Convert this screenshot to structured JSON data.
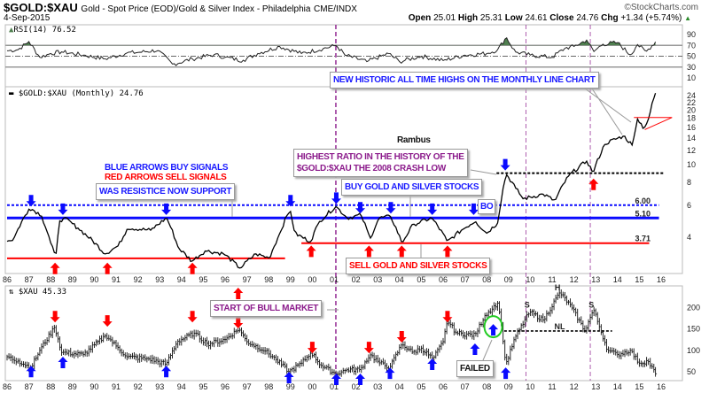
{
  "header": {
    "symbol": "$GOLD:$XAU",
    "description": "Gold - Spot Price (EOD)/Gold & Silver Index - Philadelphia",
    "exchange": "CME/INDX",
    "date": "4-Sep-2015",
    "brand": "©StockCharts.com",
    "open_label": "Open",
    "open": "25.01",
    "high_label": "High",
    "high": "25.31",
    "low_label": "Low",
    "low": "24.61",
    "close_label": "Close",
    "close": "24.76",
    "chg_label": "Chg",
    "chg": "+1.34 (+5.74%)",
    "chg_icon": "up-triangle-icon"
  },
  "colors": {
    "buy": "#0a0aff",
    "sell": "#ff0000",
    "purple": "#8b1a8b",
    "rsi_fill": "#4f7f4f",
    "green_circle": "#22cc22"
  },
  "chart_data": [
    {
      "type": "line",
      "title": "RSI(14) 76.52",
      "ylim": [
        0,
        100
      ],
      "yticks": [
        "90",
        "70",
        "50",
        "30",
        "10"
      ],
      "levels": [
        70,
        50,
        30
      ],
      "series": [
        {
          "name": "RSI(14)",
          "points": [
            [
              1986.0,
              60
            ],
            [
              1986.5,
              62
            ],
            [
              1987.0,
              77
            ],
            [
              1987.5,
              48
            ],
            [
              1988.0,
              55
            ],
            [
              1988.5,
              58
            ],
            [
              1989.5,
              52
            ],
            [
              1990.5,
              45
            ],
            [
              1991.5,
              56
            ],
            [
              1992.0,
              57
            ],
            [
              1992.9,
              61
            ],
            [
              1993.6,
              35
            ],
            [
              1994.5,
              45
            ],
            [
              1995.5,
              53
            ],
            [
              1996.0,
              48
            ],
            [
              1996.8,
              42
            ],
            [
              1997.5,
              55
            ],
            [
              1998.5,
              68
            ],
            [
              1999.5,
              55
            ],
            [
              2000.5,
              64
            ],
            [
              2001.1,
              70
            ],
            [
              2001.5,
              52
            ],
            [
              2002.5,
              40
            ],
            [
              2003.5,
              55
            ],
            [
              2004.0,
              40
            ],
            [
              2005.0,
              50
            ],
            [
              2006.0,
              42
            ],
            [
              2007.0,
              52
            ],
            [
              2008.0,
              55
            ],
            [
              2008.5,
              62
            ],
            [
              2008.9,
              85
            ],
            [
              2009.3,
              58
            ],
            [
              2010.0,
              52
            ],
            [
              2011.0,
              48
            ],
            [
              2011.6,
              65
            ],
            [
              2012.0,
              68
            ],
            [
              2012.6,
              80
            ],
            [
              2012.9,
              58
            ],
            [
              2013.3,
              72
            ],
            [
              2014.0,
              75
            ],
            [
              2014.6,
              52
            ],
            [
              2014.9,
              72
            ],
            [
              2015.3,
              58
            ],
            [
              2015.74,
              76.52
            ]
          ]
        }
      ]
    },
    {
      "type": "line",
      "title": "$GOLD:$XAU (Monthly) 24.76",
      "scale": "log",
      "ylim": [
        2.4,
        26
      ],
      "yticks": [
        "24",
        "22",
        "20",
        "18",
        "16",
        "14",
        "12",
        "10",
        "8",
        "6",
        "4"
      ],
      "xticks": [
        "86",
        "87",
        "88",
        "89",
        "90",
        "91",
        "92",
        "93",
        "94",
        "95",
        "96",
        "97",
        "98",
        "99",
        "00",
        "01",
        "02",
        "03",
        "04",
        "05",
        "06",
        "07",
        "08",
        "09",
        "10",
        "11",
        "12",
        "13",
        "14",
        "15",
        "16"
      ],
      "xlim": [
        1986,
        2016
      ],
      "series": [
        {
          "name": "$GOLD:$XAU",
          "points": [
            [
              1986.0,
              3.8
            ],
            [
              1986.3,
              3.91
            ],
            [
              1987.04,
              5.8
            ],
            [
              1987.56,
              5.3
            ],
            [
              1987.98,
              3.78
            ],
            [
              1988.23,
              3.05
            ],
            [
              1988.4,
              4.9
            ],
            [
              1988.61,
              5.1
            ],
            [
              1989.24,
              4.5
            ],
            [
              1990.5,
              3.24
            ],
            [
              1991.12,
              3.6
            ],
            [
              1991.54,
              4.5
            ],
            [
              1992.59,
              4.37
            ],
            [
              1993.32,
              5.1
            ],
            [
              1993.85,
              3.5
            ],
            [
              1994.48,
              2.95
            ],
            [
              1995.1,
              3.37
            ],
            [
              1995.95,
              3.24
            ],
            [
              1996.68,
              2.7
            ],
            [
              1997.41,
              3.24
            ],
            [
              1998.03,
              3.07
            ],
            [
              1998.46,
              4.06
            ],
            [
              1998.98,
              5.68
            ],
            [
              1999.19,
              4.2
            ],
            [
              1999.92,
              3.78
            ],
            [
              2000.34,
              4.9
            ],
            [
              2001.08,
              5.9
            ],
            [
              2001.6,
              5.1
            ],
            [
              2002.23,
              5.3
            ],
            [
              2002.65,
              3.91
            ],
            [
              2003.06,
              5.1
            ],
            [
              2003.59,
              5.2
            ],
            [
              2004.11,
              3.71
            ],
            [
              2004.64,
              4.7
            ],
            [
              2005.48,
              5.1
            ],
            [
              2006.2,
              3.78
            ],
            [
              2006.84,
              4.37
            ],
            [
              2007.47,
              4.9
            ],
            [
              2007.99,
              4.2
            ],
            [
              2008.51,
              4.8
            ],
            [
              2008.89,
              8.9
            ],
            [
              2009.35,
              7.37
            ],
            [
              2009.67,
              6.5
            ],
            [
              2010.6,
              6.9
            ],
            [
              2011.13,
              6.32
            ],
            [
              2011.76,
              8.7
            ],
            [
              2012.6,
              10.5
            ],
            [
              2012.87,
              9.0
            ],
            [
              2013.44,
              13.1
            ],
            [
              2014.28,
              14.4
            ],
            [
              2014.7,
              12.7
            ],
            [
              2014.9,
              18.0
            ],
            [
              2015.22,
              15.8
            ],
            [
              2015.43,
              18.0
            ],
            [
              2015.74,
              24.76
            ]
          ]
        }
      ],
      "levels": [
        {
          "name": "resistance-now-support",
          "value": 6.0,
          "label": "6.00",
          "style": "dotted",
          "color": "#0a0aff",
          "from": 1986,
          "to": 2015.9
        },
        {
          "name": "support",
          "value": 5.1,
          "label": "5.10",
          "style": "solid",
          "color": "#0a0aff",
          "from": 1986,
          "to": 2015.9
        },
        {
          "name": "sell-line-2",
          "value": 3.71,
          "label": "3.71",
          "style": "solid",
          "color": "#ff0000",
          "from": 1999.5,
          "to": 2015.45
        },
        {
          "name": "sell-line-1",
          "value": 3.06,
          "label": "",
          "style": "solid",
          "color": "#ff0000",
          "from": 1986,
          "to": 1998.75
        },
        {
          "name": "crash-high",
          "value": 9.0,
          "label": "",
          "style": "dashed",
          "color": "#000000",
          "from": 2008.45,
          "to": 2016.15
        }
      ],
      "buy_arrows": [
        [
          1987.1,
          5.9
        ],
        [
          1988.56,
          5.3
        ],
        [
          1993.3,
          5.3
        ],
        [
          1999.0,
          5.9
        ],
        [
          2001.1,
          6.1
        ],
        [
          2002.2,
          5.4
        ],
        [
          2003.6,
          5.4
        ],
        [
          2005.5,
          5.3
        ],
        [
          2007.4,
          5.3
        ],
        [
          2008.85,
          9.3
        ]
      ],
      "sell_arrows": [
        [
          1988.2,
          2.9
        ],
        [
          1990.6,
          2.9
        ],
        [
          1994.5,
          2.9
        ],
        [
          1999.95,
          3.6
        ],
        [
          2002.6,
          3.6
        ],
        [
          2004.1,
          3.6
        ],
        [
          2006.2,
          3.6
        ],
        [
          2012.9,
          8.4
        ]
      ],
      "annotations": {
        "all_time_highs": "NEW HISTORIC ALL TIME HIGHS ON THE MONTHLY LINE CHART",
        "author": "Rambus",
        "legend_buy": "BLUE ARROWS BUY SIGNALS",
        "legend_sell": "RED ARROWS SELL SIGNALS",
        "resistance": "WAS RESISTICE NOW SUPPORT",
        "highest_ratio_1": "HIGHEST RATIO IN THE HISTORY OF THE",
        "highest_ratio_2": "$GOLD:$XAU THE 2008 CRASH LOW",
        "buy_stocks": "BUY GOLD AND SILVER STOCKS",
        "breakout": "BO",
        "sell_stocks": "SELL GOLD AND SILVER STOCKS"
      }
    },
    {
      "type": "bar",
      "title": "$XAU 45.33",
      "ylim": [
        35,
        245
      ],
      "yticks": [
        "200",
        "150",
        "100",
        "50"
      ],
      "series": [
        {
          "name": "$XAU",
          "points": [
            [
              1986.0,
              85
            ],
            [
              1986.5,
              75
            ],
            [
              1987.1,
              60
            ],
            [
              1987.5,
              100
            ],
            [
              1988.19,
              155
            ],
            [
              1988.5,
              95
            ],
            [
              1989.5,
              90
            ],
            [
              1990.54,
              135
            ],
            [
              1991.0,
              110
            ],
            [
              1991.5,
              85
            ],
            [
              1992.5,
              80
            ],
            [
              1993.3,
              68
            ],
            [
              1993.8,
              120
            ],
            [
              1994.58,
              140
            ],
            [
              1995.2,
              115
            ],
            [
              1996.0,
              125
            ],
            [
              1996.63,
              150
            ],
            [
              1997.0,
              120
            ],
            [
              1997.8,
              100
            ],
            [
              1998.3,
              80
            ],
            [
              1998.93,
              50
            ],
            [
              1999.5,
              70
            ],
            [
              1999.95,
              95
            ],
            [
              2000.4,
              65
            ],
            [
              2001.08,
              45
            ],
            [
              2001.6,
              55
            ],
            [
              2002.2,
              55
            ],
            [
              2002.65,
              90
            ],
            [
              2003.1,
              70
            ],
            [
              2003.56,
              60
            ],
            [
              2004.11,
              115
            ],
            [
              2004.6,
              95
            ],
            [
              2005.0,
              105
            ],
            [
              2005.54,
              80
            ],
            [
              2006.0,
              120
            ],
            [
              2006.2,
              170
            ],
            [
              2006.6,
              140
            ],
            [
              2007.46,
              135
            ],
            [
              2007.9,
              180
            ],
            [
              2008.5,
              210
            ],
            [
              2008.7,
              150
            ],
            [
              2008.87,
              65
            ],
            [
              2009.3,
              130
            ],
            [
              2009.97,
              190
            ],
            [
              2010.6,
              170
            ],
            [
              2011.35,
              235
            ],
            [
              2011.9,
              200
            ],
            [
              2012.5,
              145
            ],
            [
              2012.9,
              195
            ],
            [
              2013.2,
              150
            ],
            [
              2013.55,
              100
            ],
            [
              2014.0,
              90
            ],
            [
              2014.58,
              100
            ],
            [
              2015.0,
              70
            ],
            [
              2015.4,
              75
            ],
            [
              2015.74,
              45.33
            ]
          ]
        }
      ],
      "sell_arrows": [
        [
          1988.2,
          165
        ],
        [
          1990.6,
          155
        ],
        [
          1994.5,
          165
        ],
        [
          1996.6,
          151
        ],
        [
          2000.0,
          93
        ],
        [
          2002.6,
          93
        ],
        [
          2004.1,
          118
        ],
        [
          2006.2,
          165
        ]
      ],
      "sell_up_arrows": [
        [
          1996.6,
          246
        ]
      ],
      "buy_arrows": [
        [
          1987.1,
          64
        ],
        [
          1988.56,
          85
        ],
        [
          1993.3,
          64
        ],
        [
          1998.93,
          50
        ],
        [
          2001.1,
          46
        ],
        [
          2002.2,
          46
        ],
        [
          2003.56,
          60
        ],
        [
          2005.5,
          81
        ],
        [
          2007.46,
          116
        ],
        [
          2008.3,
          161
        ],
        [
          2008.87,
          60
        ]
      ],
      "neckline": {
        "value": 145,
        "from": 2008.8,
        "to": 2013.75,
        "label": "NL"
      },
      "pattern_labels": [
        {
          "text": "S",
          "year": 2009.85,
          "value": 200
        },
        {
          "text": "H",
          "year": 2011.25,
          "value": 240
        },
        {
          "text": "S",
          "year": 2012.8,
          "value": 200
        }
      ],
      "annotations": {
        "bull_market": "START OF BULL MARKET",
        "failed": "FAILED"
      }
    }
  ],
  "vertical_markers": [
    2001.08,
    2009.8,
    2012.75
  ]
}
